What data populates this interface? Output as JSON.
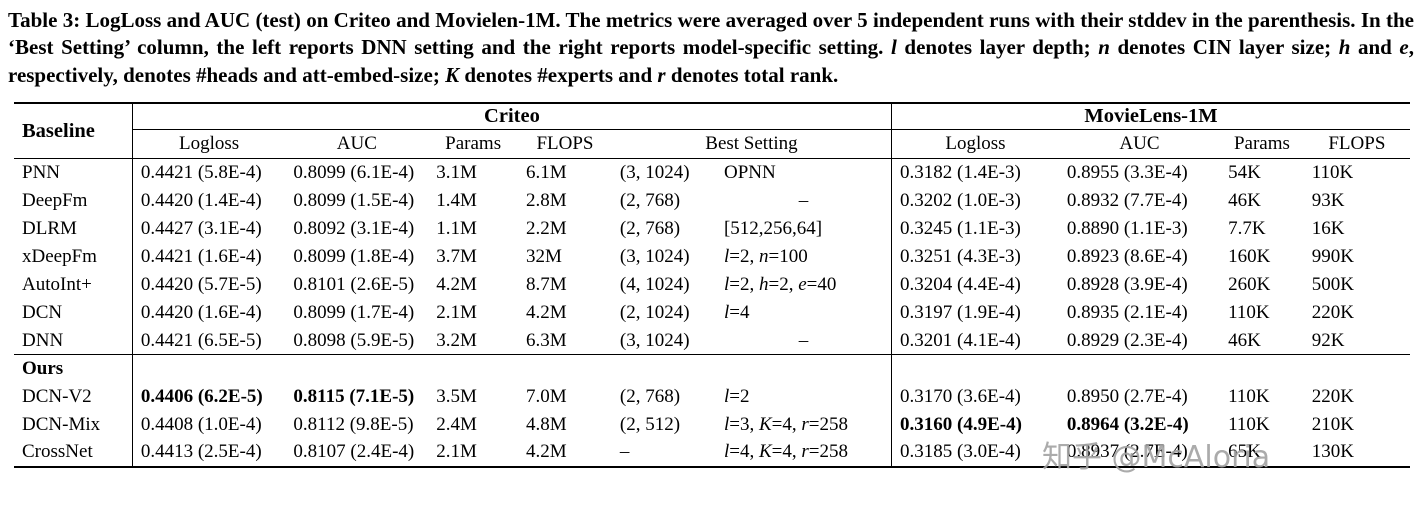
{
  "caption": {
    "segments": [
      {
        "t": "Table 3: LogLoss and AUC (test) on Criteo and Movielen-1M. The metrics were averaged over 5 independent runs with their stddev in the parenthesis. In the ‘Best Setting’ column, the left reports DNN setting and the right reports model-specific setting. ",
        "i": false
      },
      {
        "t": "l",
        "i": true
      },
      {
        "t": " denotes layer depth; ",
        "i": false
      },
      {
        "t": "n",
        "i": true
      },
      {
        "t": " denotes CIN layer size; ",
        "i": false
      },
      {
        "t": "h",
        "i": true
      },
      {
        "t": " and ",
        "i": false
      },
      {
        "t": "e",
        "i": true
      },
      {
        "t": ", respectively, denotes #heads and att-embed-size; ",
        "i": false
      },
      {
        "t": "K",
        "i": true
      },
      {
        "t": " denotes #experts and ",
        "i": false
      },
      {
        "t": "r",
        "i": true
      },
      {
        "t": " denotes total rank.",
        "i": false
      }
    ]
  },
  "watermark": "知乎 @McAloria",
  "table": {
    "header": {
      "baseline": "Baseline",
      "group_criteo": "Criteo",
      "group_movielens": "MovieLens-1M",
      "sub": [
        "Logloss",
        "AUC",
        "Params",
        "FLOPS",
        "Best Setting",
        "Logloss",
        "AUC",
        "Params",
        "FLOPS"
      ]
    },
    "rows": [
      {
        "name": "PNN",
        "cells": [
          "0.4421 (5.8E-4)",
          "0.8099 (6.1E-4)",
          "3.1M",
          "6.1M",
          "(3, 1024)",
          "OPNN",
          "0.3182 (1.4E-3)",
          "0.8955 (3.3E-4)",
          "54K",
          "110K"
        ],
        "bold": []
      },
      {
        "name": "DeepFm",
        "cells": [
          "0.4420 (1.4E-4)",
          "0.8099 (1.5E-4)",
          "1.4M",
          "2.8M",
          "(2, 768)",
          "–",
          "0.3202 (1.0E-3)",
          "0.8932 (7.7E-4)",
          "46K",
          "93K"
        ],
        "bold": []
      },
      {
        "name": "DLRM",
        "cells": [
          "0.4427 (3.1E-4)",
          "0.8092 (3.1E-4)",
          "1.1M",
          "2.2M",
          "(2, 768)",
          "[512,256,64]",
          "0.3245 (1.1E-3)",
          "0.8890 (1.1E-3)",
          "7.7K",
          "16K"
        ],
        "bold": []
      },
      {
        "name": "xDeepFm",
        "cells": [
          "0.4421 (1.6E-4)",
          "0.8099 (1.8E-4)",
          "3.7M",
          "32M",
          "(3, 1024)",
          "l=2, n=100",
          "0.3251 (4.3E-3)",
          "0.8923 (8.6E-4)",
          "160K",
          "990K"
        ],
        "bold": []
      },
      {
        "name": "AutoInt+",
        "cells": [
          "0.4420 (5.7E-5)",
          "0.8101 (2.6E-5)",
          "4.2M",
          "8.7M",
          "(4, 1024)",
          "l=2, h=2, e=40",
          "0.3204 (4.4E-4)",
          "0.8928 (3.9E-4)",
          "260K",
          "500K"
        ],
        "bold": []
      },
      {
        "name": "DCN",
        "cells": [
          "0.4420 (1.6E-4)",
          "0.8099 (1.7E-4)",
          "2.1M",
          "4.2M",
          "(2, 1024)",
          "l=4",
          "0.3197 (1.9E-4)",
          "0.8935 (2.1E-4)",
          "110K",
          "220K"
        ],
        "bold": []
      },
      {
        "name": "DNN",
        "cells": [
          "0.4421 (6.5E-5)",
          "0.8098 (5.9E-5)",
          "3.2M",
          "6.3M",
          "(3, 1024)",
          "–",
          "0.3201 (4.1E-4)",
          "0.8929 (2.3E-4)",
          "46K",
          "92K"
        ],
        "bold": []
      },
      {
        "name": "Ours",
        "name_bold": true,
        "section": true,
        "cells": [
          "",
          "",
          "",
          "",
          "",
          "",
          "",
          "",
          "",
          ""
        ],
        "bold": []
      },
      {
        "name": "DCN-V2",
        "cells": [
          "0.4406 (6.2E-5)",
          "0.8115 (7.1E-5)",
          "3.5M",
          "7.0M",
          "(2, 768)",
          "l=2",
          "0.3170 (3.6E-4)",
          "0.8950 (2.7E-4)",
          "110K",
          "220K"
        ],
        "bold": [
          0,
          1
        ]
      },
      {
        "name": "DCN-Mix",
        "cells": [
          "0.4408 (1.0E-4)",
          "0.8112 (9.8E-5)",
          "2.4M",
          "4.8M",
          "(2, 512)",
          "l=3, K=4, r=258",
          "0.3160 (4.9E-4)",
          "0.8964 (3.2E-4)",
          "110K",
          "210K"
        ],
        "bold": [
          6,
          7
        ]
      },
      {
        "name": "CrossNet",
        "cells": [
          "0.4413 (2.5E-4)",
          "0.8107 (2.4E-4)",
          "2.1M",
          "4.2M",
          "–",
          "l=4, K=4, r=258",
          "0.3185 (3.0E-4)",
          "0.8937 (2.7E-4)",
          "65K",
          "130K"
        ],
        "bold": []
      }
    ]
  }
}
